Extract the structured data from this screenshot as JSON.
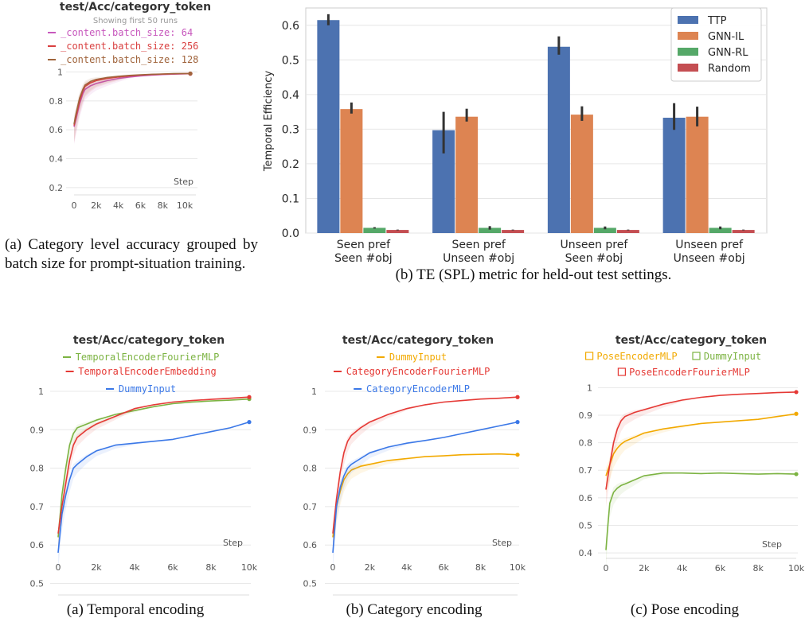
{
  "chart_data": [
    {
      "type": "line",
      "title": "test/Acc/category_token",
      "subtitle": "Showing first 50 runs",
      "xlabel": "Step",
      "xticks": [
        "0",
        "2k",
        "4k",
        "6k",
        "8k",
        "10k"
      ],
      "yticks": [
        "0.2",
        "0.4",
        "0.6",
        "0.8",
        "1"
      ],
      "xlim": [
        0,
        11000
      ],
      "ylim": [
        0.15,
        1.03
      ],
      "legend_placement": "top",
      "legend_marker": "dash",
      "grid": true,
      "series": [
        {
          "name": "_content.batch_size: 64",
          "color": "#c758bd",
          "x": [
            0,
            200,
            500,
            800,
            1000,
            1500,
            2000,
            3000,
            4000,
            5000,
            6000,
            7000,
            8000,
            9000,
            10000,
            10500
          ],
          "y": [
            0.62,
            0.68,
            0.78,
            0.85,
            0.88,
            0.905,
            0.92,
            0.94,
            0.955,
            0.965,
            0.972,
            0.978,
            0.982,
            0.985,
            0.987,
            0.988
          ]
        },
        {
          "name": "_content.batch_size: 256",
          "color": "#d94040",
          "x": [
            0,
            200,
            500,
            800,
            1000,
            1500,
            2000,
            3000,
            4000,
            5000,
            6000,
            7000,
            8000,
            9000,
            10000,
            10500
          ],
          "y": [
            0.63,
            0.7,
            0.8,
            0.87,
            0.9,
            0.925,
            0.94,
            0.955,
            0.965,
            0.972,
            0.978,
            0.982,
            0.985,
            0.987,
            0.988,
            0.988
          ]
        },
        {
          "name": "_content.batch_size: 128",
          "color": "#a0643c",
          "x": [
            0,
            200,
            500,
            800,
            1000,
            1500,
            2000,
            3000,
            4000,
            5000,
            6000,
            7000,
            8000,
            9000,
            10000,
            10500
          ],
          "y": [
            0.64,
            0.72,
            0.82,
            0.88,
            0.91,
            0.935,
            0.948,
            0.962,
            0.97,
            0.976,
            0.98,
            0.984,
            0.986,
            0.988,
            0.989,
            0.989
          ]
        }
      ]
    },
    {
      "type": "bar",
      "title": "",
      "ylabel": "Temporal Efficiency",
      "categories": [
        [
          "Seen pref",
          "Seen #obj"
        ],
        [
          "Seen pref",
          "Unseen #obj"
        ],
        [
          "Unseen pref",
          "Seen #obj"
        ],
        [
          "Unseen pref",
          "Unseen #obj"
        ]
      ],
      "yticks": [
        "0.0",
        "0.1",
        "0.2",
        "0.3",
        "0.4",
        "0.5",
        "0.6"
      ],
      "ylim": [
        0,
        0.65
      ],
      "legend_placement": "top-right",
      "grid": true,
      "series": [
        {
          "name": "TTP",
          "color": "#4c72b0",
          "values": [
            0.615,
            0.297,
            0.538,
            0.333
          ],
          "err_low": [
            0.6,
            0.23,
            0.515,
            0.298
          ],
          "err_high": [
            0.632,
            0.35,
            0.568,
            0.375
          ]
        },
        {
          "name": "GNN-IL",
          "color": "#dd8452",
          "values": [
            0.358,
            0.336,
            0.342,
            0.336
          ],
          "err_low": [
            0.345,
            0.322,
            0.324,
            0.308
          ],
          "err_high": [
            0.377,
            0.359,
            0.366,
            0.365
          ]
        },
        {
          "name": "GNN-RL",
          "color": "#55a868",
          "values": [
            0.015,
            0.015,
            0.015,
            0.015
          ],
          "err_low": [
            0.013,
            0.01,
            0.011,
            0.011
          ],
          "err_high": [
            0.017,
            0.02,
            0.019,
            0.019
          ]
        },
        {
          "name": "Random",
          "color": "#c44e52",
          "values": [
            0.009,
            0.009,
            0.009,
            0.009
          ],
          "err_low": [
            0.008,
            0.008,
            0.008,
            0.008
          ],
          "err_high": [
            0.01,
            0.01,
            0.01,
            0.01
          ]
        }
      ]
    },
    {
      "type": "line",
      "title": "test/Acc/category_token",
      "xlabel": "Step",
      "xticks": [
        "0",
        "2k",
        "4k",
        "6k",
        "8k",
        "10k"
      ],
      "yticks": [
        "0.5",
        "0.6",
        "0.7",
        "0.8",
        "0.9",
        "1"
      ],
      "xlim": [
        0,
        10000
      ],
      "ylim": [
        0.47,
        1.0
      ],
      "legend_placement": "top",
      "legend_marker": "dash",
      "grid": true,
      "series": [
        {
          "name": "TemporalEncoderFourierMLP",
          "color": "#7cb342",
          "x": [
            0,
            200,
            400,
            600,
            800,
            1000,
            1500,
            2000,
            3000,
            4000,
            5000,
            6000,
            7000,
            8000,
            9000,
            10000
          ],
          "y": [
            0.62,
            0.73,
            0.8,
            0.86,
            0.89,
            0.905,
            0.915,
            0.925,
            0.94,
            0.95,
            0.96,
            0.968,
            0.972,
            0.975,
            0.977,
            0.98
          ]
        },
        {
          "name": "TemporalEncoderEmbedding",
          "color": "#e53935",
          "x": [
            0,
            200,
            400,
            600,
            800,
            1000,
            1500,
            2000,
            3000,
            4000,
            5000,
            6000,
            7000,
            8000,
            9000,
            10000
          ],
          "y": [
            0.63,
            0.7,
            0.76,
            0.82,
            0.86,
            0.88,
            0.9,
            0.915,
            0.935,
            0.955,
            0.965,
            0.972,
            0.976,
            0.979,
            0.982,
            0.985
          ]
        },
        {
          "name": "DummyInput",
          "color": "#3b78e7",
          "x": [
            0,
            200,
            400,
            600,
            800,
            1000,
            1500,
            2000,
            3000,
            4000,
            5000,
            6000,
            7000,
            8000,
            9000,
            10000
          ],
          "y": [
            0.58,
            0.68,
            0.73,
            0.77,
            0.8,
            0.81,
            0.83,
            0.845,
            0.86,
            0.865,
            0.87,
            0.875,
            0.885,
            0.895,
            0.905,
            0.92
          ]
        }
      ]
    },
    {
      "type": "line",
      "title": "test/Acc/category_token",
      "xlabel": "Step",
      "xticks": [
        "0",
        "2k",
        "4k",
        "6k",
        "8k",
        "10k"
      ],
      "yticks": [
        "0.5",
        "0.6",
        "0.7",
        "0.8",
        "0.9",
        "1"
      ],
      "xlim": [
        0,
        10000
      ],
      "ylim": [
        0.47,
        1.0
      ],
      "legend_placement": "top",
      "legend_marker": "dash",
      "grid": true,
      "series": [
        {
          "name": "DummyInput",
          "color": "#f2a900",
          "x": [
            0,
            200,
            400,
            600,
            800,
            1000,
            1500,
            2000,
            3000,
            4000,
            5000,
            6000,
            7000,
            8000,
            9000,
            10000
          ],
          "y": [
            0.62,
            0.7,
            0.74,
            0.77,
            0.785,
            0.795,
            0.805,
            0.81,
            0.82,
            0.825,
            0.83,
            0.832,
            0.835,
            0.836,
            0.837,
            0.835
          ]
        },
        {
          "name": "CategoryEncoderFourierMLP",
          "color": "#e53935",
          "x": [
            0,
            200,
            400,
            600,
            800,
            1000,
            1500,
            2000,
            3000,
            4000,
            5000,
            6000,
            7000,
            8000,
            9000,
            10000
          ],
          "y": [
            0.63,
            0.72,
            0.79,
            0.84,
            0.87,
            0.885,
            0.905,
            0.92,
            0.94,
            0.955,
            0.965,
            0.972,
            0.976,
            0.98,
            0.982,
            0.985
          ]
        },
        {
          "name": "CategoryEncoderMLP",
          "color": "#3b78e7",
          "x": [
            0,
            200,
            400,
            600,
            800,
            1000,
            1500,
            2000,
            3000,
            4000,
            5000,
            6000,
            7000,
            8000,
            9000,
            10000
          ],
          "y": [
            0.58,
            0.7,
            0.75,
            0.78,
            0.8,
            0.81,
            0.825,
            0.84,
            0.855,
            0.865,
            0.872,
            0.88,
            0.89,
            0.9,
            0.91,
            0.92
          ]
        }
      ]
    },
    {
      "type": "line",
      "title": "test/Acc/category_token",
      "xlabel": "Step",
      "xticks": [
        "0",
        "2k",
        "4k",
        "6k",
        "8k",
        "10k"
      ],
      "yticks": [
        "0.4",
        "0.5",
        "0.6",
        "0.7",
        "0.8",
        "0.9",
        "1"
      ],
      "xlim": [
        0,
        10000
      ],
      "ylim": [
        0.38,
        1.03
      ],
      "legend_placement": "top",
      "legend_marker": "square",
      "grid": true,
      "series": [
        {
          "name": "PoseEncoderMLP",
          "color": "#f2a900",
          "x": [
            0,
            200,
            400,
            600,
            800,
            1000,
            1500,
            2000,
            3000,
            4000,
            5000,
            6000,
            7000,
            8000,
            9000,
            10000
          ],
          "y": [
            0.68,
            0.72,
            0.76,
            0.78,
            0.795,
            0.805,
            0.82,
            0.835,
            0.85,
            0.86,
            0.87,
            0.875,
            0.88,
            0.885,
            0.895,
            0.905
          ]
        },
        {
          "name": "DummyInput",
          "color": "#7cb342",
          "x": [
            0,
            100,
            200,
            400,
            600,
            800,
            1000,
            1500,
            2000,
            3000,
            4000,
            5000,
            6000,
            7000,
            8000,
            9000,
            10000
          ],
          "y": [
            0.41,
            0.5,
            0.58,
            0.62,
            0.635,
            0.645,
            0.65,
            0.665,
            0.68,
            0.69,
            0.69,
            0.688,
            0.69,
            0.688,
            0.686,
            0.688,
            0.686
          ]
        },
        {
          "name": "PoseEncoderFourierMLP",
          "color": "#e53935",
          "x": [
            0,
            200,
            400,
            600,
            800,
            1000,
            1500,
            2000,
            3000,
            4000,
            5000,
            6000,
            7000,
            8000,
            9000,
            10000
          ],
          "y": [
            0.63,
            0.72,
            0.8,
            0.85,
            0.88,
            0.895,
            0.91,
            0.92,
            0.94,
            0.955,
            0.965,
            0.972,
            0.976,
            0.979,
            0.982,
            0.984
          ]
        }
      ]
    }
  ],
  "captions": {
    "a_top": "(a) Category level accuracy grouped by batch size for prompt-situation training.",
    "b_top": "(b) TE (SPL) metric for held-out test settings.",
    "a_bottom": "(a) Temporal encoding",
    "b_bottom": "(b) Category encoding",
    "c_bottom": "(c) Pose encoding"
  }
}
